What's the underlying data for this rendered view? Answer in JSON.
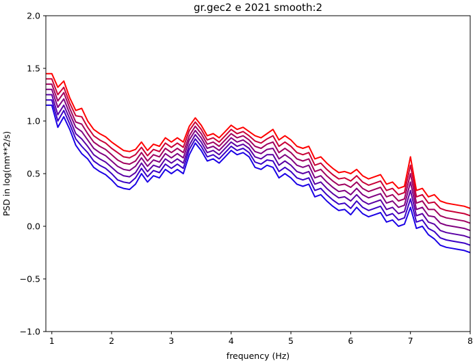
{
  "chart_data": {
    "type": "line",
    "title": "gr.gec2 e 2021 smooth:2",
    "xlabel": "frequency (Hz)",
    "ylabel": "PSD in log(nm**2/s)",
    "xlim": [
      0.9,
      8
    ],
    "ylim": [
      -1.0,
      2.0
    ],
    "x_ticks": [
      1,
      2,
      3,
      4,
      5,
      6,
      7,
      8
    ],
    "x_tick_labels": [
      "1",
      "2",
      "3",
      "4",
      "5",
      "6",
      "7",
      "8"
    ],
    "y_ticks": [
      -1.0,
      -0.5,
      0.0,
      0.5,
      1.0,
      1.5,
      2.0
    ],
    "y_tick_labels": [
      "−1.0",
      "−0.5",
      "0.0",
      "0.5",
      "1.0",
      "1.5",
      "2.0"
    ],
    "grid": false,
    "legend": "none",
    "colors": [
      "#ff0000",
      "#c80037",
      "#a0005f",
      "#800080",
      "#5a00a5",
      "#3a00c5",
      "#1a00e5"
    ],
    "x": [
      0.9,
      1.0,
      1.1,
      1.2,
      1.3,
      1.4,
      1.5,
      1.6,
      1.7,
      1.8,
      1.9,
      2.0,
      2.1,
      2.2,
      2.3,
      2.4,
      2.5,
      2.6,
      2.7,
      2.8,
      2.9,
      3.0,
      3.1,
      3.2,
      3.3,
      3.4,
      3.5,
      3.6,
      3.7,
      3.8,
      3.9,
      4.0,
      4.1,
      4.2,
      4.3,
      4.4,
      4.5,
      4.6,
      4.7,
      4.8,
      4.9,
      5.0,
      5.1,
      5.2,
      5.3,
      5.4,
      5.5,
      5.6,
      5.7,
      5.8,
      5.9,
      6.0,
      6.1,
      6.2,
      6.3,
      6.4,
      6.5,
      6.6,
      6.7,
      6.8,
      6.9,
      7.0,
      7.1,
      7.2,
      7.3,
      7.4,
      7.5,
      7.6,
      7.7,
      7.8,
      7.9,
      8.0
    ],
    "series": [
      {
        "values": [
          1.45,
          1.45,
          1.32,
          1.38,
          1.22,
          1.1,
          1.12,
          1.0,
          0.92,
          0.88,
          0.85,
          0.8,
          0.76,
          0.72,
          0.71,
          0.73,
          0.8,
          0.72,
          0.78,
          0.76,
          0.84,
          0.8,
          0.84,
          0.8,
          0.95,
          1.03,
          0.96,
          0.86,
          0.88,
          0.84,
          0.9,
          0.96,
          0.92,
          0.94,
          0.9,
          0.86,
          0.84,
          0.88,
          0.92,
          0.82,
          0.86,
          0.82,
          0.76,
          0.74,
          0.76,
          0.64,
          0.66,
          0.6,
          0.55,
          0.51,
          0.52,
          0.5,
          0.54,
          0.48,
          0.45,
          0.47,
          0.49,
          0.4,
          0.42,
          0.36,
          0.38,
          0.66,
          0.34,
          0.36,
          0.28,
          0.3,
          0.24,
          0.22,
          0.21,
          0.2,
          0.19,
          0.17
        ]
      },
      {
        "values": [
          1.4,
          1.4,
          1.25,
          1.32,
          1.17,
          1.05,
          1.04,
          0.94,
          0.86,
          0.82,
          0.79,
          0.74,
          0.7,
          0.66,
          0.65,
          0.68,
          0.75,
          0.67,
          0.73,
          0.71,
          0.79,
          0.75,
          0.79,
          0.75,
          0.91,
          0.99,
          0.92,
          0.82,
          0.84,
          0.8,
          0.86,
          0.92,
          0.88,
          0.9,
          0.86,
          0.81,
          0.79,
          0.83,
          0.86,
          0.76,
          0.8,
          0.76,
          0.7,
          0.68,
          0.7,
          0.58,
          0.6,
          0.54,
          0.49,
          0.45,
          0.46,
          0.43,
          0.48,
          0.42,
          0.39,
          0.41,
          0.43,
          0.34,
          0.36,
          0.3,
          0.32,
          0.58,
          0.28,
          0.3,
          0.22,
          0.23,
          0.17,
          0.15,
          0.14,
          0.13,
          0.12,
          0.1
        ]
      },
      {
        "values": [
          1.35,
          1.35,
          1.19,
          1.27,
          1.12,
          0.99,
          0.97,
          0.88,
          0.8,
          0.76,
          0.73,
          0.68,
          0.63,
          0.6,
          0.59,
          0.62,
          0.7,
          0.62,
          0.68,
          0.66,
          0.74,
          0.7,
          0.74,
          0.7,
          0.86,
          0.95,
          0.88,
          0.78,
          0.8,
          0.76,
          0.82,
          0.88,
          0.84,
          0.86,
          0.82,
          0.76,
          0.74,
          0.78,
          0.8,
          0.7,
          0.74,
          0.7,
          0.64,
          0.62,
          0.64,
          0.52,
          0.54,
          0.48,
          0.43,
          0.39,
          0.4,
          0.37,
          0.42,
          0.36,
          0.33,
          0.35,
          0.37,
          0.28,
          0.3,
          0.24,
          0.26,
          0.5,
          0.22,
          0.24,
          0.16,
          0.16,
          0.1,
          0.08,
          0.07,
          0.06,
          0.05,
          0.03
        ]
      },
      {
        "values": [
          1.3,
          1.3,
          1.13,
          1.21,
          1.07,
          0.94,
          0.9,
          0.82,
          0.74,
          0.7,
          0.67,
          0.62,
          0.57,
          0.54,
          0.53,
          0.57,
          0.65,
          0.57,
          0.63,
          0.61,
          0.69,
          0.65,
          0.69,
          0.65,
          0.82,
          0.91,
          0.84,
          0.74,
          0.76,
          0.72,
          0.78,
          0.84,
          0.8,
          0.82,
          0.78,
          0.71,
          0.69,
          0.73,
          0.74,
          0.64,
          0.68,
          0.64,
          0.58,
          0.56,
          0.58,
          0.46,
          0.48,
          0.42,
          0.37,
          0.33,
          0.34,
          0.3,
          0.36,
          0.3,
          0.27,
          0.29,
          0.31,
          0.22,
          0.24,
          0.18,
          0.2,
          0.42,
          0.16,
          0.18,
          0.1,
          0.09,
          0.03,
          0.01,
          0.0,
          -0.01,
          -0.02,
          -0.04
        ]
      },
      {
        "values": [
          1.25,
          1.25,
          1.06,
          1.15,
          1.02,
          0.88,
          0.83,
          0.76,
          0.68,
          0.64,
          0.61,
          0.56,
          0.51,
          0.48,
          0.47,
          0.51,
          0.6,
          0.52,
          0.58,
          0.56,
          0.64,
          0.6,
          0.64,
          0.6,
          0.77,
          0.87,
          0.8,
          0.7,
          0.72,
          0.68,
          0.74,
          0.8,
          0.76,
          0.78,
          0.74,
          0.66,
          0.64,
          0.68,
          0.68,
          0.58,
          0.62,
          0.58,
          0.52,
          0.5,
          0.52,
          0.4,
          0.42,
          0.36,
          0.31,
          0.27,
          0.28,
          0.24,
          0.3,
          0.24,
          0.21,
          0.23,
          0.25,
          0.16,
          0.18,
          0.12,
          0.14,
          0.34,
          0.1,
          0.12,
          0.04,
          0.02,
          -0.04,
          -0.06,
          -0.07,
          -0.08,
          -0.09,
          -0.11
        ]
      },
      {
        "values": [
          1.2,
          1.2,
          1.0,
          1.1,
          0.97,
          0.83,
          0.76,
          0.7,
          0.62,
          0.58,
          0.55,
          0.5,
          0.44,
          0.42,
          0.41,
          0.46,
          0.55,
          0.47,
          0.53,
          0.51,
          0.59,
          0.55,
          0.59,
          0.55,
          0.73,
          0.83,
          0.76,
          0.66,
          0.68,
          0.64,
          0.7,
          0.76,
          0.72,
          0.74,
          0.7,
          0.61,
          0.59,
          0.63,
          0.62,
          0.52,
          0.56,
          0.52,
          0.46,
          0.44,
          0.46,
          0.34,
          0.36,
          0.3,
          0.25,
          0.21,
          0.22,
          0.17,
          0.24,
          0.18,
          0.15,
          0.17,
          0.19,
          0.1,
          0.12,
          0.06,
          0.08,
          0.26,
          0.04,
          0.06,
          -0.02,
          -0.05,
          -0.11,
          -0.13,
          -0.14,
          -0.15,
          -0.16,
          -0.18
        ]
      },
      {
        "values": [
          1.15,
          1.15,
          0.94,
          1.04,
          0.92,
          0.77,
          0.69,
          0.64,
          0.56,
          0.52,
          0.49,
          0.44,
          0.38,
          0.36,
          0.35,
          0.4,
          0.5,
          0.42,
          0.48,
          0.46,
          0.54,
          0.5,
          0.54,
          0.5,
          0.68,
          0.79,
          0.72,
          0.62,
          0.64,
          0.6,
          0.66,
          0.72,
          0.68,
          0.7,
          0.66,
          0.56,
          0.54,
          0.58,
          0.56,
          0.46,
          0.5,
          0.46,
          0.4,
          0.38,
          0.4,
          0.28,
          0.3,
          0.24,
          0.19,
          0.15,
          0.16,
          0.11,
          0.18,
          0.12,
          0.09,
          0.11,
          0.13,
          0.04,
          0.06,
          0.0,
          0.02,
          0.18,
          -0.02,
          0.0,
          -0.08,
          -0.12,
          -0.18,
          -0.2,
          -0.21,
          -0.22,
          -0.23,
          -0.25
        ]
      }
    ]
  }
}
